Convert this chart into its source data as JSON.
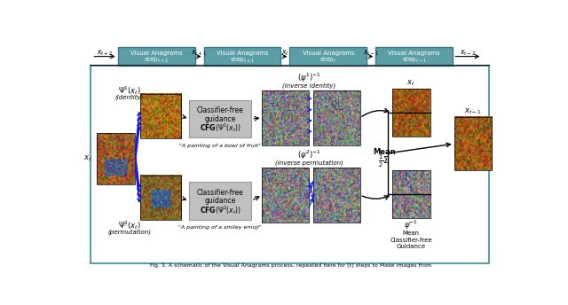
{
  "bg_color": "#ffffff",
  "teal_box_color": "#5B9EA6",
  "teal_border_color": "#5B9EA6",
  "gray_cfg_color": "#C0C0C0",
  "gray_cfg_edge": "#999999",
  "top_box_labels": [
    "Visual Anagrams\nstep$_{t+2}$",
    "Visual Anagrams\nstep$_{t+1}$",
    "Visual Anagrams\nstep$_{t}$",
    "Visual Anagrams\nstep$_{t-1}$"
  ],
  "x_tick_labels": [
    "$x_{t+2}$",
    "$x_{t+1}$",
    "$x_{t}$",
    "$x_{t-1}$",
    "$x_{t-2}$"
  ],
  "caption": "Fig. 3. A schematic of the Visual Anagrams process, repeated here for [t] steps to Make Images from"
}
